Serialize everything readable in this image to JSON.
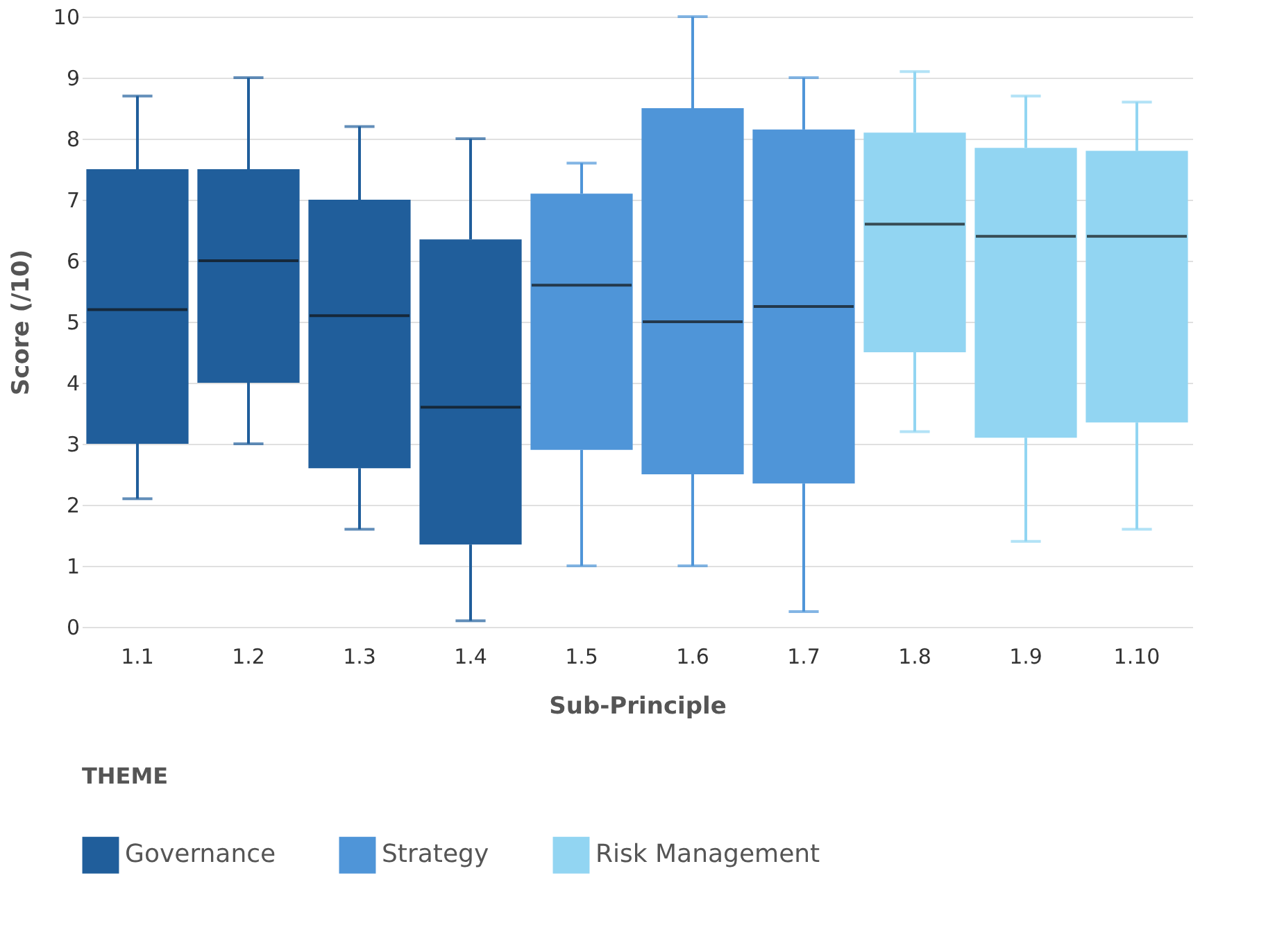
{
  "chart_data": {
    "type": "box",
    "xlabel": "Sub-Principle",
    "ylabel": "Score (/10)",
    "legend_title": "THEME",
    "legend": "bottom",
    "grid": "y",
    "categories": [
      "1.1",
      "1.2",
      "1.3",
      "1.4",
      "1.5",
      "1.6",
      "1.7",
      "1.8",
      "1.9",
      "1.10"
    ],
    "ylim": [
      0,
      10
    ],
    "yticks": [
      0,
      1,
      2,
      3,
      4,
      5,
      6,
      7,
      8,
      9,
      10
    ],
    "series": [
      {
        "name": "Governance",
        "color": "#205e9b",
        "boxes": [
          {
            "low": 2.1,
            "q1": 3.0,
            "median": 5.2,
            "q3": 7.5,
            "high": 8.7
          },
          {
            "low": 3.0,
            "q1": 4.0,
            "median": 6.0,
            "q3": 7.5,
            "high": 9.0
          },
          {
            "low": 1.6,
            "q1": 2.6,
            "median": 5.1,
            "q3": 7.0,
            "high": 8.2
          },
          {
            "low": 0.1,
            "q1": 1.35,
            "median": 3.6,
            "q3": 6.35,
            "high": 8.0
          },
          null,
          null,
          null,
          null,
          null,
          null
        ]
      },
      {
        "name": "Strategy",
        "color": "#4f95d8",
        "boxes": [
          null,
          null,
          null,
          null,
          {
            "low": 1.0,
            "q1": 2.9,
            "median": 5.6,
            "q3": 7.1,
            "high": 7.6
          },
          {
            "low": 1.0,
            "q1": 2.5,
            "median": 5.0,
            "q3": 8.5,
            "high": 10.0
          },
          {
            "low": 0.25,
            "q1": 2.35,
            "median": 5.25,
            "q3": 8.15,
            "high": 9.0
          },
          null,
          null,
          null
        ]
      },
      {
        "name": "Risk Management",
        "color": "#92d5f2",
        "boxes": [
          null,
          null,
          null,
          null,
          null,
          null,
          null,
          {
            "low": 3.2,
            "q1": 4.5,
            "median": 6.6,
            "q3": 8.1,
            "high": 9.1
          },
          {
            "low": 1.4,
            "q1": 3.1,
            "median": 6.4,
            "q3": 7.85,
            "high": 8.7
          },
          {
            "low": 1.6,
            "q1": 3.35,
            "median": 6.4,
            "q3": 7.8,
            "high": 8.6
          }
        ]
      }
    ]
  }
}
